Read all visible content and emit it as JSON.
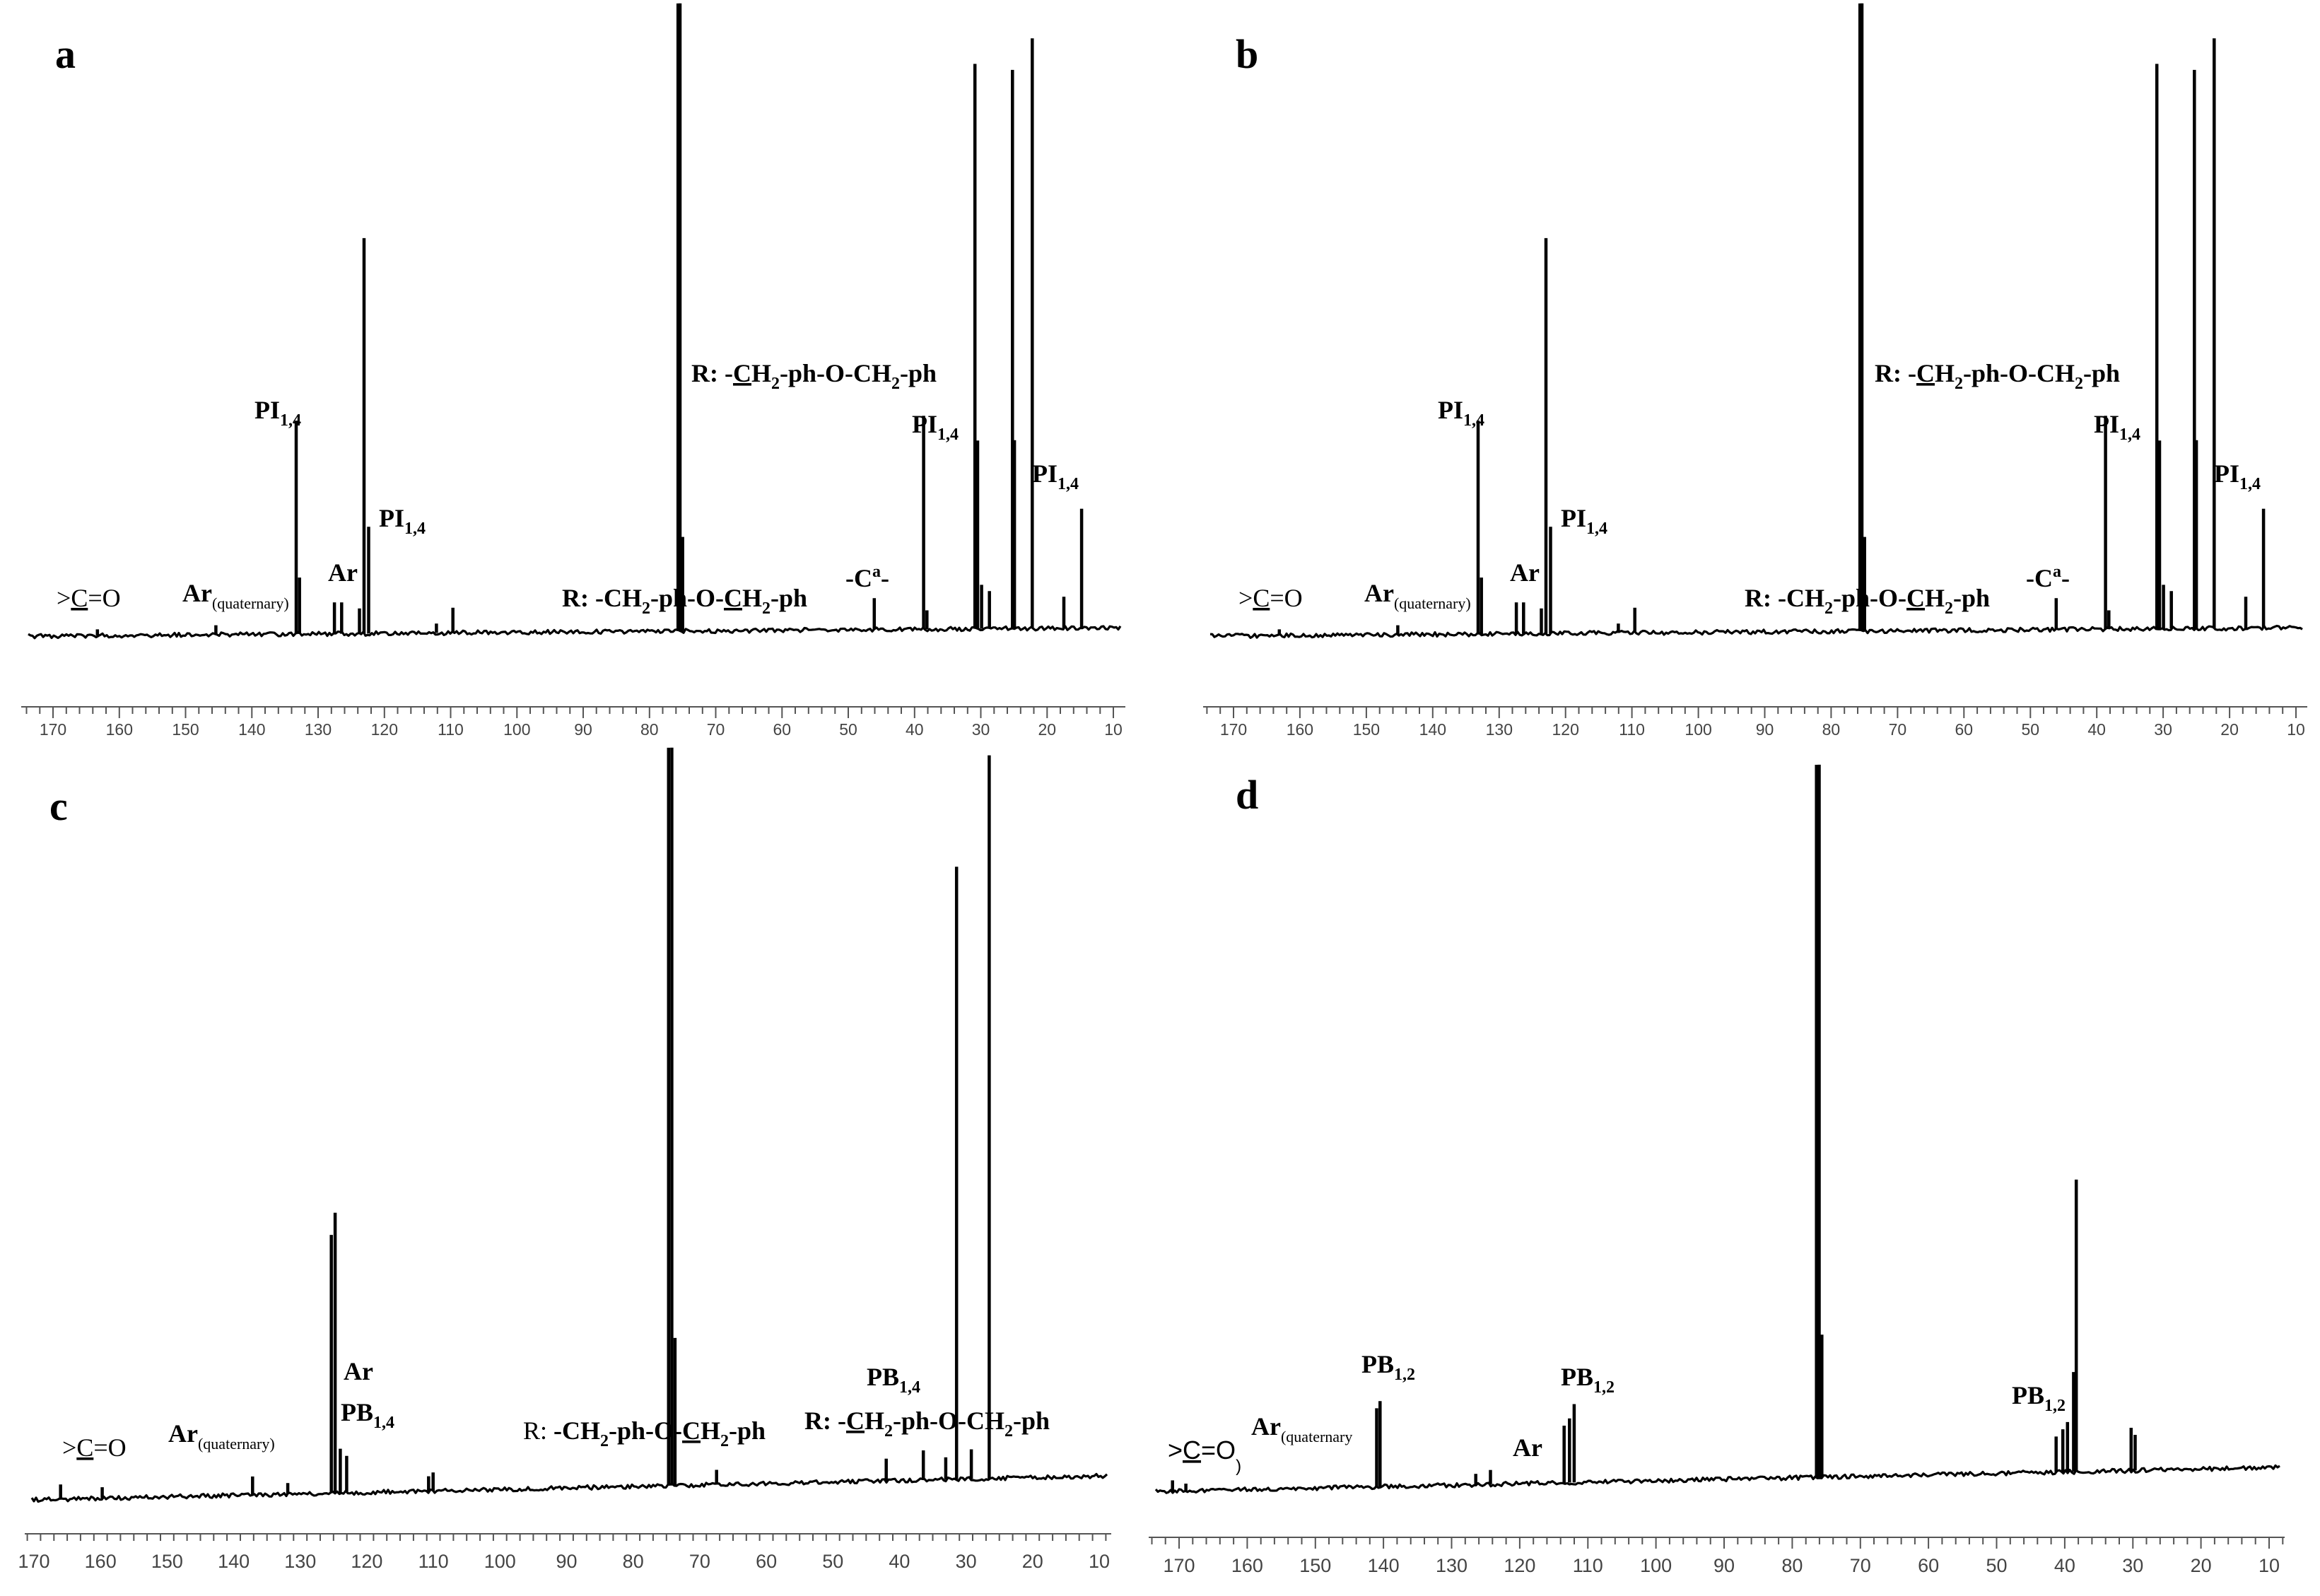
{
  "chart_data": [
    {
      "panel": "a",
      "type": "line",
      "xlim": [
        176,
        10
      ],
      "x_ticks": [
        170,
        160,
        150,
        140,
        130,
        120,
        110,
        100,
        90,
        80,
        70,
        60,
        50,
        40,
        30,
        20,
        10
      ],
      "peaks": [
        {
          "ppm": 165.5,
          "h": 0.01
        },
        {
          "ppm": 147.5,
          "h": 0.015
        },
        {
          "ppm": 135.3,
          "h": 0.34
        },
        {
          "ppm": 134.8,
          "h": 0.09
        },
        {
          "ppm": 129.5,
          "h": 0.05
        },
        {
          "ppm": 128.4,
          "h": 0.05
        },
        {
          "ppm": 125.7,
          "h": 0.04
        },
        {
          "ppm": 125.0,
          "h": 0.63
        },
        {
          "ppm": 124.3,
          "h": 0.17
        },
        {
          "ppm": 114.0,
          "h": 0.015
        },
        {
          "ppm": 111.5,
          "h": 0.04
        },
        {
          "ppm": 77.3,
          "h": 1.0
        },
        {
          "ppm": 77.0,
          "h": 1.0
        },
        {
          "ppm": 76.6,
          "h": 0.15
        },
        {
          "ppm": 47.5,
          "h": 0.05
        },
        {
          "ppm": 40.0,
          "h": 0.34
        },
        {
          "ppm": 39.5,
          "h": 0.03
        },
        {
          "ppm": 32.2,
          "h": 0.9
        },
        {
          "ppm": 31.8,
          "h": 0.3
        },
        {
          "ppm": 31.2,
          "h": 0.07
        },
        {
          "ppm": 30.0,
          "h": 0.06
        },
        {
          "ppm": 26.5,
          "h": 0.89
        },
        {
          "ppm": 26.2,
          "h": 0.3
        },
        {
          "ppm": 23.5,
          "h": 0.94
        },
        {
          "ppm": 18.7,
          "h": 0.05
        },
        {
          "ppm": 16.0,
          "h": 0.19
        }
      ]
    },
    {
      "panel": "b",
      "type": "line",
      "xlim": [
        176,
        10
      ],
      "x_ticks": [
        170,
        160,
        150,
        140,
        130,
        120,
        110,
        100,
        90,
        80,
        70,
        60,
        50,
        40,
        30,
        20,
        10
      ],
      "peaks": [
        {
          "ppm": 165.5,
          "h": 0.01
        },
        {
          "ppm": 147.5,
          "h": 0.015
        },
        {
          "ppm": 135.3,
          "h": 0.34
        },
        {
          "ppm": 134.8,
          "h": 0.09
        },
        {
          "ppm": 129.5,
          "h": 0.05
        },
        {
          "ppm": 128.4,
          "h": 0.05
        },
        {
          "ppm": 125.7,
          "h": 0.04
        },
        {
          "ppm": 125.0,
          "h": 0.63
        },
        {
          "ppm": 124.3,
          "h": 0.17
        },
        {
          "ppm": 114.0,
          "h": 0.015
        },
        {
          "ppm": 111.5,
          "h": 0.04
        },
        {
          "ppm": 77.3,
          "h": 1.0
        },
        {
          "ppm": 77.0,
          "h": 1.0
        },
        {
          "ppm": 76.6,
          "h": 0.15
        },
        {
          "ppm": 47.5,
          "h": 0.05
        },
        {
          "ppm": 40.0,
          "h": 0.34
        },
        {
          "ppm": 39.5,
          "h": 0.03
        },
        {
          "ppm": 32.2,
          "h": 0.9
        },
        {
          "ppm": 31.8,
          "h": 0.3
        },
        {
          "ppm": 31.2,
          "h": 0.07
        },
        {
          "ppm": 30.0,
          "h": 0.06
        },
        {
          "ppm": 26.5,
          "h": 0.89
        },
        {
          "ppm": 26.2,
          "h": 0.3
        },
        {
          "ppm": 23.5,
          "h": 0.94
        },
        {
          "ppm": 18.7,
          "h": 0.05
        },
        {
          "ppm": 16.0,
          "h": 0.19
        }
      ]
    },
    {
      "panel": "c",
      "type": "line",
      "xlim": [
        177,
        9
      ],
      "x_ticks": [
        170,
        160,
        150,
        140,
        130,
        120,
        110,
        100,
        90,
        80,
        70,
        60,
        50,
        40,
        30,
        20,
        10
      ],
      "peaks": [
        {
          "ppm": 172.5,
          "h": 0.02
        },
        {
          "ppm": 166.0,
          "h": 0.015
        },
        {
          "ppm": 142.5,
          "h": 0.025
        },
        {
          "ppm": 137.0,
          "h": 0.015
        },
        {
          "ppm": 130.2,
          "h": 0.35
        },
        {
          "ppm": 129.6,
          "h": 0.38
        },
        {
          "ppm": 128.8,
          "h": 0.06
        },
        {
          "ppm": 127.8,
          "h": 0.05
        },
        {
          "ppm": 115.0,
          "h": 0.02
        },
        {
          "ppm": 114.3,
          "h": 0.025
        },
        {
          "ppm": 77.5,
          "h": 1.0
        },
        {
          "ppm": 77.0,
          "h": 1.0
        },
        {
          "ppm": 76.5,
          "h": 0.2
        },
        {
          "ppm": 70.0,
          "h": 0.02
        },
        {
          "ppm": 43.5,
          "h": 0.03
        },
        {
          "ppm": 37.7,
          "h": 0.04
        },
        {
          "ppm": 34.2,
          "h": 0.03
        },
        {
          "ppm": 32.5,
          "h": 0.83
        },
        {
          "ppm": 30.2,
          "h": 0.04
        },
        {
          "ppm": 27.4,
          "h": 0.98
        }
      ]
    },
    {
      "panel": "d",
      "type": "line",
      "xlim": [
        176,
        8
      ],
      "x_ticks": [
        170,
        160,
        150,
        140,
        130,
        120,
        110,
        100,
        90,
        80,
        70,
        60,
        50,
        40,
        30,
        20,
        10
      ],
      "peaks": [
        {
          "ppm": 173.5,
          "h": 0.015
        },
        {
          "ppm": 171.5,
          "h": 0.01
        },
        {
          "ppm": 143.0,
          "h": 0.11
        },
        {
          "ppm": 142.5,
          "h": 0.12
        },
        {
          "ppm": 128.2,
          "h": 0.015
        },
        {
          "ppm": 126.0,
          "h": 0.02
        },
        {
          "ppm": 115.0,
          "h": 0.08
        },
        {
          "ppm": 114.2,
          "h": 0.09
        },
        {
          "ppm": 113.5,
          "h": 0.11
        },
        {
          "ppm": 77.3,
          "h": 1.0
        },
        {
          "ppm": 76.9,
          "h": 1.0
        },
        {
          "ppm": 76.5,
          "h": 0.2
        },
        {
          "ppm": 41.5,
          "h": 0.05
        },
        {
          "ppm": 40.5,
          "h": 0.06
        },
        {
          "ppm": 39.8,
          "h": 0.07
        },
        {
          "ppm": 38.9,
          "h": 0.14
        },
        {
          "ppm": 38.5,
          "h": 0.41
        },
        {
          "ppm": 30.3,
          "h": 0.06
        },
        {
          "ppm": 29.7,
          "h": 0.05
        }
      ]
    }
  ],
  "panels": {
    "a": {
      "letter": "a",
      "labels": {
        "co_gt": ">",
        "co_c": "C",
        "co_rest": "=O",
        "arq_main": "Ar",
        "arq_sub": "(quaternary)",
        "ar": "Ar",
        "pi1_main": "PI",
        "pi1_sub": "1,4",
        "pi2_main": "PI",
        "pi2_sub": "1,4",
        "pi3_main": "PI",
        "pi3_sub": "1,4",
        "pi4_main": "PI",
        "pi4_sub": "1,4",
        "r1_a": "R: -",
        "r1_b": "C",
        "r1_c": "H",
        "r1_d": "2",
        "r1_e": "-ph-O-CH",
        "r1_f": "2",
        "r1_g": "-ph",
        "r2_a": "R: -CH",
        "r2_b": "2",
        "r2_c": "-ph-O-",
        "r2_d": "C",
        "r2_e": "H",
        "r2_f": "2",
        "r2_g": "-ph",
        "ca_a": "-C",
        "ca_b": "a",
        "ca_c": "-"
      }
    },
    "b": {
      "letter": "b",
      "labels": {
        "co_gt": ">",
        "co_c": "C",
        "co_rest": "=O",
        "arq_main": "Ar",
        "arq_sub": "(quaternary)",
        "ar": "Ar",
        "pi1_main": "PI",
        "pi1_sub": "1,4",
        "pi2_main": "PI",
        "pi2_sub": "1,4",
        "pi3_main": "PI",
        "pi3_sub": "1,4",
        "pi4_main": "PI",
        "pi4_sub": "1,4",
        "r1_a": "R: -",
        "r1_b": "C",
        "r1_c": "H",
        "r1_d": "2",
        "r1_e": "-ph-O-CH",
        "r1_f": "2",
        "r1_g": "-ph",
        "r2_a": "R: -CH",
        "r2_b": "2",
        "r2_c": "-ph-O-",
        "r2_d": "C",
        "r2_e": "H",
        "r2_f": "2",
        "r2_g": "-ph",
        "ca_a": "-C",
        "ca_b": "a",
        "ca_c": "-"
      }
    },
    "c": {
      "letter": "c",
      "labels": {
        "co_gt": ">",
        "co_c": "C",
        "co_rest": "=O",
        "arq_main": "Ar",
        "arq_sub": "(quaternary)",
        "ar": "Ar",
        "pb1_main": "PB",
        "pb1_sub": "1,4",
        "pb2_main": "PB",
        "pb2_sub": "1,4",
        "r1_a": "R: ",
        "r1_b": "-CH",
        "r1_c": "2",
        "r1_d": "-ph-O-",
        "r1_e": "C",
        "r1_f": "H",
        "r1_g": "2",
        "r1_h": "-ph",
        "r2_a": "R: -",
        "r2_b": "C",
        "r2_c": "H",
        "r2_d": "2",
        "r2_e": "-ph-O-CH",
        "r2_f": "2",
        "r2_g": "-ph"
      }
    },
    "d": {
      "letter": "d",
      "labels": {
        "co_gt": ">",
        "co_c": "C",
        "co_rest": "=O",
        "co_paren": ")",
        "arq_main": "Ar",
        "arq_sub": "(quaternary",
        "ar": "Ar",
        "pb1_main": "PB",
        "pb1_sub": "1,2",
        "pb2_main": "PB",
        "pb2_sub": "1,2",
        "pb3_main": "PB",
        "pb3_sub": "1,2"
      }
    }
  }
}
